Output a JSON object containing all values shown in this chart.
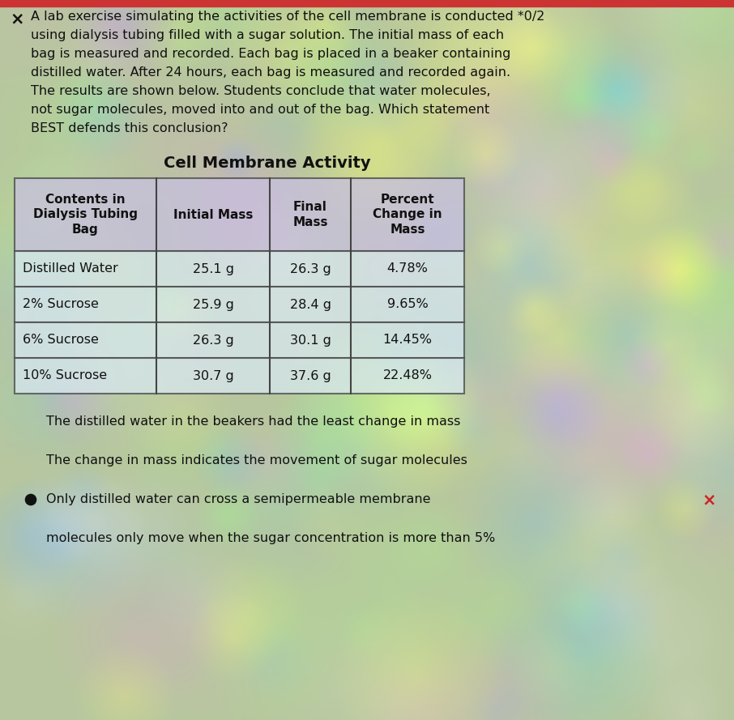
{
  "background_color": "#b8c8a0",
  "question_text_lines": [
    "A lab exercise simulating the activities of the cell membrane is conducted *0/2",
    "using dialysis tubing filled with a sugar solution. The initial mass of each",
    "bag is measured and recorded. Each bag is placed in a beaker containing",
    "distilled water. After 24 hours, each bag is measured and recorded again.",
    "The results are shown below. Students conclude that water molecules,",
    "not sugar molecules, moved into and out of the bag. Which statement",
    "BEST defends this conclusion?"
  ],
  "x_mark": "×",
  "table_title": "Cell Membrane Activity",
  "table_headers": [
    "Contents in\nDialysis Tubing\nBag",
    "Initial Mass",
    "Final\nMass",
    "Percent\nChange in\nMass"
  ],
  "table_data": [
    [
      "Distilled Water",
      "25.1 g",
      "26.3 g",
      "4.78%"
    ],
    [
      "2% Sucrose",
      "25.9 g",
      "28.4 g",
      "9.65%"
    ],
    [
      "6% Sucrose",
      "26.3 g",
      "30.1 g",
      "14.45%"
    ],
    [
      "10% Sucrose",
      "30.7 g",
      "37.6 g",
      "22.48%"
    ]
  ],
  "answer_options": [
    "The distilled water in the beakers had the least change in mass",
    "The change in mass indicates the movement of sugar molecules",
    "Only distilled water can cross a semipermeable membrane",
    "molecules only move when the sugar concentration is more than 5%"
  ],
  "selected_answer_index": 2,
  "x_mark_right": "×",
  "header_bg": "#c8c0e0",
  "row_bg": "#d8e8f0",
  "table_border": "#444444",
  "text_color": "#111111",
  "top_bar_color": "#cc3333"
}
